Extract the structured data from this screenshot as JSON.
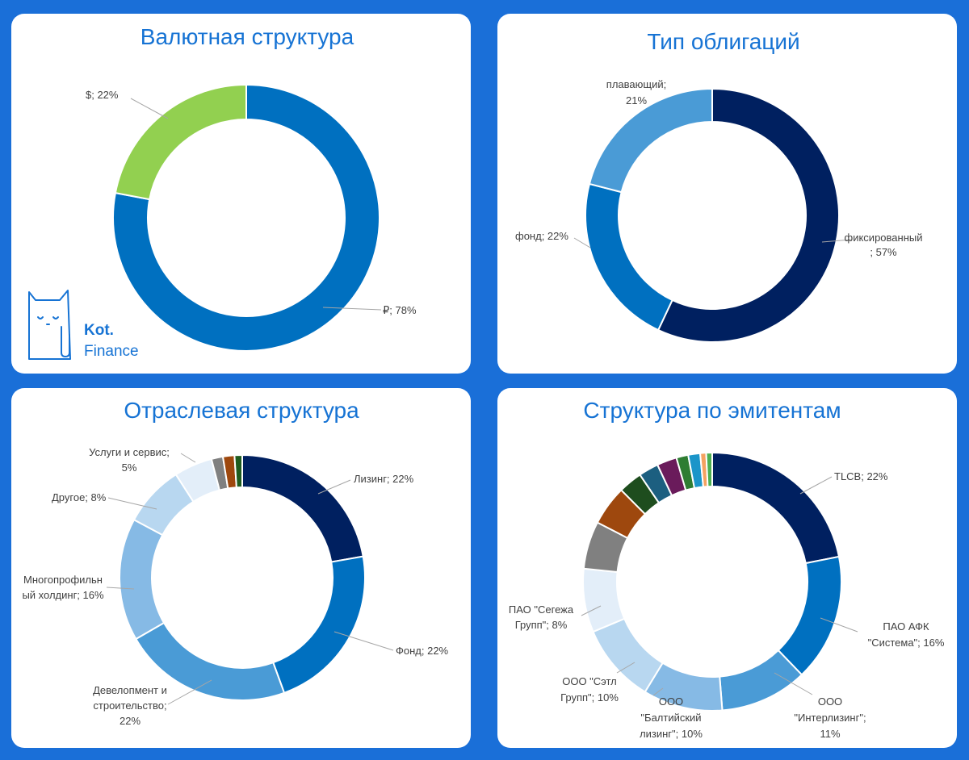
{
  "chart_data": [
    {
      "type": "pie",
      "variant": "donut",
      "title": "Валютная структура",
      "slices": [
        {
          "label": "₽",
          "value": 78,
          "label_text": "₽; 78%",
          "color": "#0070c0"
        },
        {
          "label": "$",
          "value": 22,
          "label_text": "$; 22%",
          "color": "#92d050"
        }
      ]
    },
    {
      "type": "pie",
      "variant": "donut",
      "title": "Тип облигаций",
      "slices": [
        {
          "label": "фиксированный",
          "value": 57,
          "label_lines": [
            "фиксированный",
            "; 57%"
          ],
          "color": "#002060"
        },
        {
          "label": "фонд",
          "value": 22,
          "label_lines": [
            "фонд; 22%"
          ],
          "color": "#0070c0"
        },
        {
          "label": "плавающий",
          "value": 21,
          "label_lines": [
            "плавающий;",
            "21%"
          ],
          "color": "#4a9bd6"
        }
      ]
    },
    {
      "type": "pie",
      "variant": "donut",
      "title": "Отраслевая структура",
      "slices": [
        {
          "label": "Лизинг",
          "value": 22,
          "label_lines": [
            "Лизинг; 22%"
          ],
          "color": "#002060"
        },
        {
          "label": "Фонд",
          "value": 22,
          "label_lines": [
            "Фонд; 22%"
          ],
          "color": "#0070c0"
        },
        {
          "label": "Девелопмент и строительство",
          "value": 22,
          "label_lines": [
            "Девелопмент и",
            "строительство;",
            "22%"
          ],
          "color": "#4a9bd6"
        },
        {
          "label": "Многопрофильный холдинг",
          "value": 16,
          "label_lines": [
            "Многопрофильн",
            "ый холдинг; 16%"
          ],
          "color": "#86bae5"
        },
        {
          "label": "Другое",
          "value": 8,
          "label_lines": [
            "Другое; 8%"
          ],
          "color": "#b8d7f0"
        },
        {
          "label": "Услуги и сервис",
          "value": 5,
          "label_lines": [
            "Услуги и сервис;",
            "5%"
          ],
          "color": "#e3eef9"
        },
        {
          "label": "",
          "value": 1.5,
          "label_lines": [],
          "color": "#808080"
        },
        {
          "label": "",
          "value": 1.5,
          "label_lines": [],
          "color": "#9e480e"
        },
        {
          "label": "",
          "value": 1,
          "label_lines": [],
          "color": "#1e5c1e"
        }
      ]
    },
    {
      "type": "pie",
      "variant": "donut",
      "title": "Структура по эмитентам",
      "slices": [
        {
          "label": "TLCB",
          "value": 22,
          "label_lines": [
            "TLCB; 22%"
          ],
          "color": "#002060"
        },
        {
          "label": "ПАО АФК \"Система\"",
          "value": 16,
          "label_lines": [
            "ПАО АФК",
            "\"Система\"; 16%"
          ],
          "color": "#0070c0"
        },
        {
          "label": "ООО \"Интерлизинг\"",
          "value": 11,
          "label_lines": [
            "ООО",
            "\"Интерлизинг\";",
            "11%"
          ],
          "color": "#4a9bd6"
        },
        {
          "label": "ООО \"Балтийский лизинг\"",
          "value": 10,
          "label_lines": [
            "ООО",
            "\"Балтийский",
            "лизинг\"; 10%"
          ],
          "color": "#86bae5"
        },
        {
          "label": "ООО \"Сэтл Групп\"",
          "value": 10,
          "label_lines": [
            "ООО \"Сэтл",
            "Групп\"; 10%"
          ],
          "color": "#b8d7f0"
        },
        {
          "label": "ПАО \"Сегежа Групп\"",
          "value": 8,
          "label_lines": [
            "ПАО \"Сегежа",
            "Групп\"; 8%"
          ],
          "color": "#e3eef9"
        },
        {
          "label": "",
          "value": 6,
          "label_lines": [],
          "color": "#808080"
        },
        {
          "label": "",
          "value": 5,
          "label_lines": [],
          "color": "#9e480e"
        },
        {
          "label": "",
          "value": 3,
          "label_lines": [],
          "color": "#1e4d1e"
        },
        {
          "label": "",
          "value": 2.5,
          "label_lines": [],
          "color": "#1c5f80"
        },
        {
          "label": "",
          "value": 2.5,
          "label_lines": [],
          "color": "#6a1b5b"
        },
        {
          "label": "",
          "value": 1.5,
          "label_lines": [],
          "color": "#2e7d32"
        },
        {
          "label": "",
          "value": 1.5,
          "label_lines": [],
          "color": "#1b95c9"
        },
        {
          "label": "",
          "value": 0.75,
          "label_lines": [],
          "color": "#f4a261"
        },
        {
          "label": "",
          "value": 0.75,
          "label_lines": [],
          "color": "#4caf50"
        }
      ]
    }
  ],
  "logo": {
    "line1": "Kot.",
    "line2": "Finance",
    "color": "#1673d4"
  }
}
